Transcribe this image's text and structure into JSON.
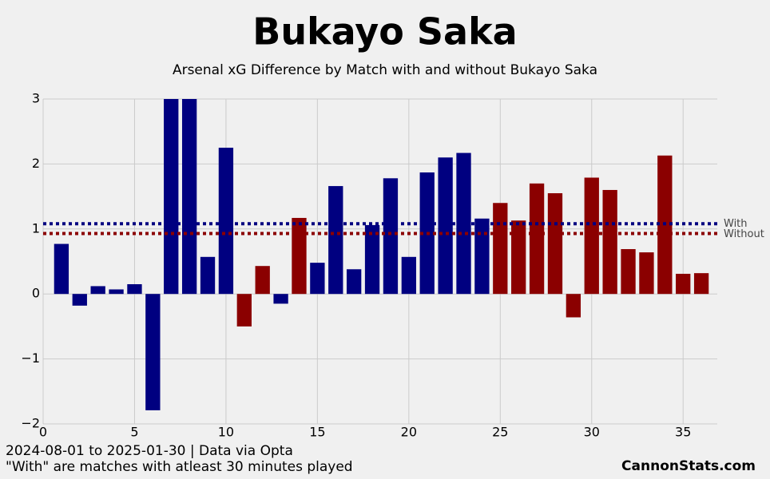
{
  "chart_data": {
    "type": "bar",
    "title": "Bukayo Saka",
    "subtitle": "Arsenal xG Difference by Match with and without Bukayo Saka",
    "notes": [
      "2024-08-01 to 2025-01-30 | Data via Opta",
      "\"With\" are matches with atleast 30 minutes played"
    ],
    "credit": "CannonStats.com",
    "xlim": [
      0,
      37
    ],
    "xticks": [
      0,
      5,
      10,
      15,
      20,
      25,
      30,
      35
    ],
    "ylim": [
      -2,
      3
    ],
    "yticks": [
      {
        "value": -2,
        "label": "−2"
      },
      {
        "value": -1,
        "label": "−1"
      },
      0,
      1,
      2,
      3
    ],
    "grid": true,
    "series": [
      {
        "name": "With",
        "color": "#000080",
        "mean": 1.08,
        "x": [
          1,
          2,
          3,
          4,
          5,
          6,
          7,
          8,
          9,
          10,
          13,
          15,
          16,
          17,
          18,
          19,
          20,
          21,
          22,
          23,
          24
        ],
        "values": [
          0.77,
          -0.18,
          0.12,
          0.07,
          0.15,
          -1.79,
          3.0,
          3.0,
          0.57,
          2.25,
          -0.15,
          0.48,
          1.66,
          0.38,
          1.06,
          1.78,
          0.57,
          1.87,
          2.1,
          2.17,
          1.16
        ]
      },
      {
        "name": "Without",
        "color": "#8b0000",
        "mean": 0.93,
        "x": [
          11,
          12,
          14,
          25,
          26,
          27,
          28,
          29,
          30,
          31,
          32,
          33,
          34,
          35,
          36
        ],
        "values": [
          -0.5,
          0.43,
          1.17,
          1.4,
          1.13,
          1.7,
          1.55,
          -0.36,
          1.79,
          1.6,
          0.69,
          0.64,
          2.13,
          0.31,
          0.32
        ]
      }
    ]
  }
}
